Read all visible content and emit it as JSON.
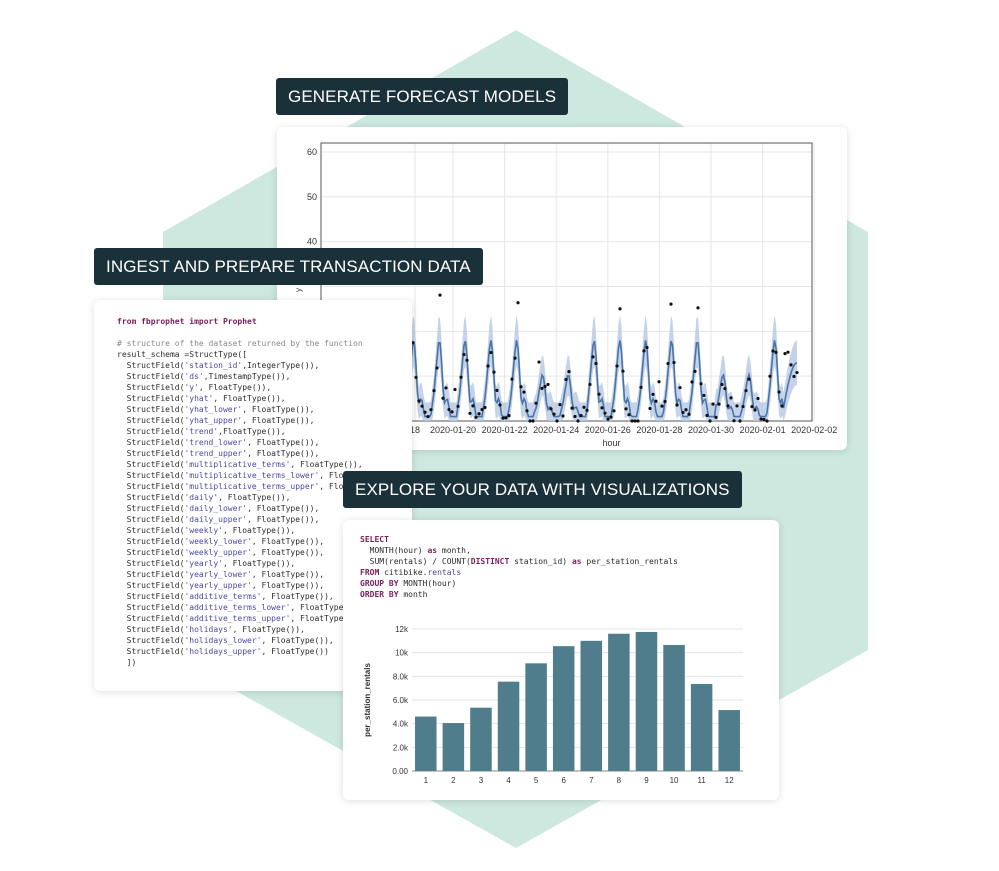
{
  "labels": {
    "forecast": "GENERATE FORECAST MODELS",
    "ingest": "INGEST AND PREPARE TRANSACTION DATA",
    "explore": "EXPLORE YOUR DATA WITH VISUALIZATIONS"
  },
  "code": {
    "line_import": "from fbprophet import Prophet",
    "comment": "# structure of the dataset returned by the function",
    "schema_open": "result_schema =StructType([",
    "fields": [
      {
        "name": "'station_id'",
        "type": ",IntegerType()),"
      },
      {
        "name": "'ds'",
        "type": ",TimestampType()),"
      },
      {
        "name": "'y'",
        "type": ", FloatType()),"
      },
      {
        "name": "'yhat'",
        "type": ", FloatType()),"
      },
      {
        "name": "'yhat_lower'",
        "type": ", FloatType()),"
      },
      {
        "name": "'yhat_upper'",
        "type": ", FloatType()),"
      },
      {
        "name": "'trend'",
        "type": ",FloatType()),"
      },
      {
        "name": "'trend_lower'",
        "type": ", FloatType()),"
      },
      {
        "name": "'trend_upper'",
        "type": ", FloatType()),"
      },
      {
        "name": "'multiplicative_terms'",
        "type": ", FloatType()),"
      },
      {
        "name": "'multiplicative_terms_lower'",
        "type": ", FloatType()),"
      },
      {
        "name": "'multiplicative_terms_upper'",
        "type": ", FloatType()),"
      },
      {
        "name": "'daily'",
        "type": ", FloatType()),"
      },
      {
        "name": "'daily_lower'",
        "type": ", FloatType()),"
      },
      {
        "name": "'daily_upper'",
        "type": ", FloatType()),"
      },
      {
        "name": "'weekly'",
        "type": ", FloatType()),"
      },
      {
        "name": "'weekly_lower'",
        "type": ", FloatType()),"
      },
      {
        "name": "'weekly_upper'",
        "type": ", FloatType()),"
      },
      {
        "name": "'yearly'",
        "type": ", FloatType()),"
      },
      {
        "name": "'yearly_lower'",
        "type": ", FloatType()),"
      },
      {
        "name": "'yearly_upper'",
        "type": ", FloatType()),"
      },
      {
        "name": "'additive_terms'",
        "type": ", FloatType()),"
      },
      {
        "name": "'additive_terms_lower'",
        "type": ", FloatType()),"
      },
      {
        "name": "'additive_terms_upper'",
        "type": ", FloatType()),"
      },
      {
        "name": "'holidays'",
        "type": ", FloatType()),"
      },
      {
        "name": "'holidays_lower'",
        "type": ", FloatType()),"
      },
      {
        "name": "'holidays_upper'",
        "type": ", FloatType())"
      }
    ],
    "field_prefix": "  StructField(",
    "schema_close": "  ])"
  },
  "sql": {
    "select": "SELECT",
    "line_month_fn": "  MONTH(hour) ",
    "as1": "as",
    "alias_month": " month,",
    "line_sum": "  SUM(rentals) / COUNT(",
    "distinct": "DISTINCT",
    "station": " station_id) ",
    "as2": "as",
    "alias_rentals": " per_station_rentals",
    "from": "FROM",
    "table_schema": " citibike.",
    "table_name": "rentals",
    "group": "GROUP BY",
    "group_expr": " MONTH(hour)",
    "order": "ORDER BY",
    "order_expr": " month"
  },
  "chart_data": [
    {
      "type": "bar",
      "categories": [
        "1",
        "2",
        "3",
        "4",
        "5",
        "6",
        "7",
        "8",
        "9",
        "10",
        "11",
        "12"
      ],
      "values": [
        4600,
        4050,
        5350,
        7550,
        9100,
        10550,
        11000,
        11600,
        11750,
        10650,
        7350,
        5150
      ],
      "xlabel": "",
      "ylabel": "per_station_rentals",
      "ylim": [
        0,
        12000
      ],
      "yticks": [
        "0.00",
        "2.0k",
        "4.0k",
        "6.0k",
        "8.0k",
        "10k",
        "12k"
      ],
      "grid": true,
      "color": "#4f7d8c"
    },
    {
      "type": "line",
      "xlabel": "hour",
      "ylabel": "y",
      "visible_yticks": [
        "60",
        "50",
        "40"
      ],
      "xticks": [
        "18",
        "2020-01-20",
        "2020-01-22",
        "2020-01-24",
        "2020-01-26",
        "2020-01-28",
        "2020-01-30",
        "2020-02-01",
        "2020-02-02"
      ],
      "series": [
        {
          "color": "#4a74a8"
        }
      ],
      "band_color": "#b7c8e2",
      "points_color": "#111111",
      "ylim": [
        0,
        62
      ]
    }
  ],
  "colors": {
    "hexagon": "#cde8df",
    "label_bg": "#1b3139"
  }
}
